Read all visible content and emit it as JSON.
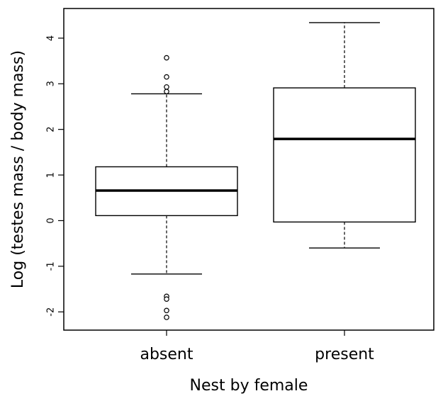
{
  "chart_data": {
    "type": "box",
    "title": "",
    "xlabel": "Nest by female",
    "ylabel": "Log (testes mass / body mass)",
    "ylim": [
      -2.4,
      4.65
    ],
    "yticks": [
      "-2",
      "-1",
      "0",
      "1",
      "2",
      "3",
      "4"
    ],
    "categories": [
      "absent",
      "present"
    ],
    "boxes": [
      {
        "category": "absent",
        "whisker_low": -1.17,
        "q1": 0.11,
        "median": 0.66,
        "q3": 1.18,
        "whisker_high": 2.78,
        "outliers": [
          3.57,
          3.15,
          2.93,
          2.83,
          -1.66,
          -1.72,
          -1.97,
          -2.12
        ]
      },
      {
        "category": "present",
        "whisker_low": -0.6,
        "q1": -0.03,
        "median": 1.79,
        "q3": 2.91,
        "whisker_high": 4.34,
        "outliers": []
      }
    ]
  }
}
